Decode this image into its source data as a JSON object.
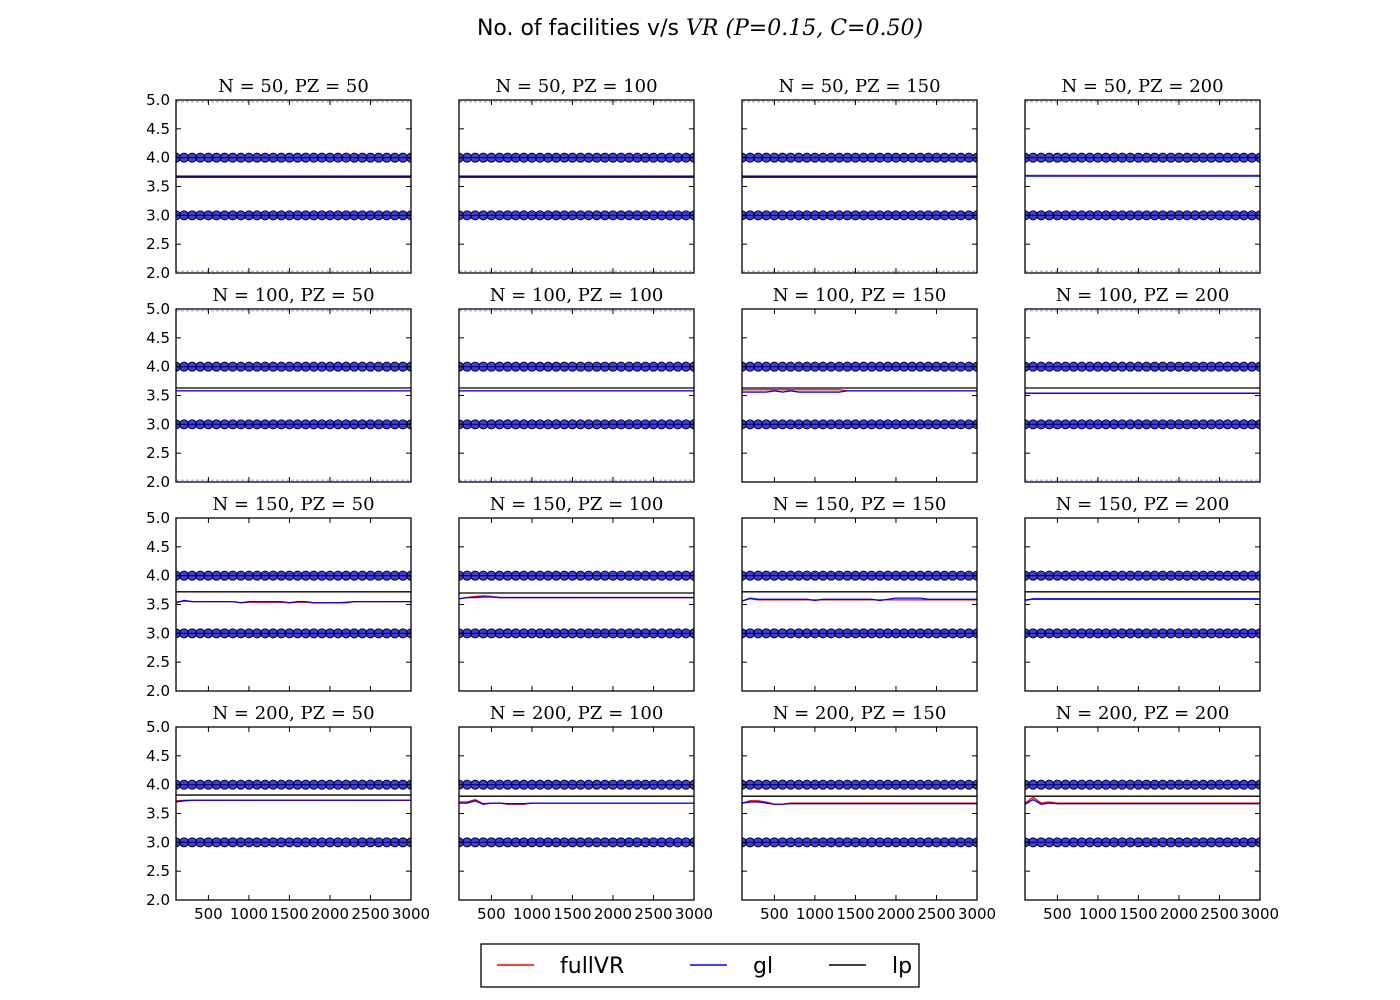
{
  "title": {
    "prefix": "No. of facilities v/s ",
    "var": "VR",
    "params": "(P=0.15, C=0.50)"
  },
  "colors": {
    "fullVR": "#ff0000",
    "gl": "#0000ff",
    "lp": "#000000",
    "points": "#0000cc"
  },
  "legend": {
    "placement": "bottom-center",
    "entries": [
      "fullVR",
      "gl",
      "lp"
    ]
  },
  "chart_data": {
    "type": "line",
    "layout": "4x4 grid of subplots",
    "shared_x_ticks": [
      500,
      1000,
      1500,
      2000,
      2500,
      3000
    ],
    "shared_y_ticks": [
      "2.0",
      "2.5",
      "3.0",
      "3.5",
      "4.0",
      "4.5",
      "5.0"
    ],
    "xlim": [
      100,
      3000
    ],
    "ylim": [
      2.0,
      5.0
    ],
    "x": [
      100,
      200,
      300,
      400,
      500,
      600,
      700,
      800,
      900,
      1000,
      1100,
      1200,
      1300,
      1400,
      1500,
      1600,
      1700,
      1800,
      1900,
      2000,
      2100,
      2200,
      2300,
      2400,
      2500,
      2600,
      2700,
      2800,
      2900,
      3000
    ],
    "scatter_levels": [
      3,
      4
    ],
    "panels": [
      {
        "N": 50,
        "PZ": 50,
        "label": "N = 50, PZ = 50",
        "lp": 3.68,
        "fullVR": 3.66,
        "gl": 3.66,
        "faint_bands": true
      },
      {
        "N": 50,
        "PZ": 100,
        "label": "N = 50, PZ = 100",
        "lp": 3.68,
        "fullVR": 3.66,
        "gl": 3.66,
        "faint_bands": true
      },
      {
        "N": 50,
        "PZ": 150,
        "label": "N = 50, PZ = 150",
        "lp": 3.68,
        "fullVR": 3.66,
        "gl": 3.66,
        "faint_bands": true
      },
      {
        "N": 50,
        "PZ": 200,
        "label": "N = 50, PZ = 200",
        "lp": 3.69,
        "fullVR": 3.69,
        "gl": 3.68,
        "faint_bands": true
      },
      {
        "N": 100,
        "PZ": 50,
        "label": "N = 100, PZ = 50",
        "lp": 3.63,
        "fullVR": 3.58,
        "gl": 3.58,
        "faint_bands": true
      },
      {
        "N": 100,
        "PZ": 100,
        "label": "N = 100, PZ = 100",
        "lp": 3.63,
        "fullVR": 3.58,
        "gl": 3.58,
        "faint_bands": true
      },
      {
        "N": 100,
        "PZ": 150,
        "label": "N = 100, PZ = 150",
        "lp": 3.63,
        "fullVR": [
          3.6,
          3.6,
          3.6,
          3.6,
          3.6,
          3.6,
          3.6,
          3.6,
          3.6,
          3.6,
          3.6,
          3.6,
          3.6,
          3.58,
          3.58,
          3.58,
          3.58,
          3.58,
          3.58,
          3.58,
          3.58,
          3.58,
          3.58,
          3.58,
          3.58,
          3.58,
          3.58,
          3.58,
          3.58,
          3.58
        ],
        "gl": [
          3.56,
          3.56,
          3.56,
          3.56,
          3.58,
          3.56,
          3.58,
          3.56,
          3.56,
          3.56,
          3.56,
          3.56,
          3.56,
          3.58,
          3.58,
          3.58,
          3.58,
          3.58,
          3.58,
          3.58,
          3.58,
          3.58,
          3.58,
          3.58,
          3.58,
          3.58,
          3.58,
          3.58,
          3.58,
          3.58
        ],
        "faint_bands": false
      },
      {
        "N": 100,
        "PZ": 200,
        "label": "N = 100, PZ = 200",
        "lp": 3.63,
        "fullVR": 3.54,
        "gl": 3.54,
        "faint_bands": true
      },
      {
        "N": 150,
        "PZ": 50,
        "label": "N = 150, PZ = 50",
        "lp": 3.72,
        "fullVR": [
          3.54,
          3.56,
          3.55,
          3.55,
          3.55,
          3.55,
          3.55,
          3.55,
          3.53,
          3.54,
          3.54,
          3.54,
          3.54,
          3.54,
          3.53,
          3.54,
          3.54,
          3.53,
          3.53,
          3.53,
          3.53,
          3.54,
          3.55,
          3.55,
          3.55,
          3.55,
          3.55,
          3.55,
          3.55,
          3.55
        ],
        "gl": [
          3.53,
          3.57,
          3.55,
          3.55,
          3.55,
          3.55,
          3.55,
          3.55,
          3.53,
          3.55,
          3.55,
          3.55,
          3.55,
          3.55,
          3.53,
          3.55,
          3.55,
          3.53,
          3.53,
          3.53,
          3.53,
          3.53,
          3.55,
          3.55,
          3.55,
          3.55,
          3.55,
          3.55,
          3.55,
          3.55
        ],
        "faint_bands": false
      },
      {
        "N": 150,
        "PZ": 100,
        "label": "N = 150, PZ = 100",
        "lp": 3.7,
        "fullVR": [
          3.6,
          3.62,
          3.64,
          3.65,
          3.64,
          3.62,
          3.62,
          3.62,
          3.62,
          3.62,
          3.62,
          3.62,
          3.62,
          3.62,
          3.62,
          3.62,
          3.62,
          3.62,
          3.62,
          3.62,
          3.62,
          3.62,
          3.62,
          3.62,
          3.62,
          3.62,
          3.62,
          3.62,
          3.62,
          3.62
        ],
        "gl": [
          3.6,
          3.62,
          3.62,
          3.63,
          3.63,
          3.62,
          3.62,
          3.62,
          3.62,
          3.62,
          3.62,
          3.62,
          3.62,
          3.62,
          3.62,
          3.62,
          3.62,
          3.62,
          3.62,
          3.62,
          3.62,
          3.62,
          3.62,
          3.62,
          3.62,
          3.62,
          3.62,
          3.62,
          3.62,
          3.62
        ],
        "faint_bands": false
      },
      {
        "N": 150,
        "PZ": 150,
        "label": "N = 150, PZ = 150",
        "lp": 3.72,
        "fullVR": [
          3.56,
          3.6,
          3.58,
          3.58,
          3.58,
          3.58,
          3.58,
          3.58,
          3.58,
          3.58,
          3.58,
          3.58,
          3.58,
          3.58,
          3.58,
          3.58,
          3.58,
          3.58,
          3.58,
          3.58,
          3.58,
          3.58,
          3.58,
          3.58,
          3.58,
          3.58,
          3.58,
          3.58,
          3.58,
          3.58
        ],
        "gl": [
          3.56,
          3.61,
          3.59,
          3.59,
          3.59,
          3.59,
          3.59,
          3.59,
          3.59,
          3.57,
          3.59,
          3.59,
          3.59,
          3.59,
          3.59,
          3.59,
          3.59,
          3.57,
          3.59,
          3.61,
          3.61,
          3.61,
          3.61,
          3.59,
          3.59,
          3.59,
          3.59,
          3.59,
          3.59,
          3.59
        ],
        "faint_bands": false
      },
      {
        "N": 150,
        "PZ": 200,
        "label": "N = 150, PZ = 200",
        "lp": 3.72,
        "fullVR": [
          3.58,
          3.59,
          3.59,
          3.59,
          3.59,
          3.59,
          3.59,
          3.59,
          3.59,
          3.59,
          3.59,
          3.59,
          3.59,
          3.59,
          3.59,
          3.59,
          3.59,
          3.59,
          3.59,
          3.59,
          3.59,
          3.59,
          3.59,
          3.59,
          3.59,
          3.59,
          3.59,
          3.59,
          3.59,
          3.59
        ],
        "gl": [
          3.57,
          3.6,
          3.6,
          3.6,
          3.6,
          3.6,
          3.6,
          3.6,
          3.6,
          3.6,
          3.6,
          3.6,
          3.6,
          3.6,
          3.6,
          3.6,
          3.6,
          3.6,
          3.6,
          3.6,
          3.6,
          3.6,
          3.6,
          3.6,
          3.6,
          3.6,
          3.6,
          3.6,
          3.6,
          3.6
        ],
        "faint_bands": false
      },
      {
        "N": 200,
        "PZ": 50,
        "label": "N = 200, PZ = 50",
        "lp": 3.82,
        "fullVR": [
          3.72,
          3.73,
          3.73,
          3.73,
          3.73,
          3.73,
          3.73,
          3.73,
          3.73,
          3.73,
          3.73,
          3.73,
          3.73,
          3.73,
          3.73,
          3.73,
          3.73,
          3.73,
          3.73,
          3.73,
          3.73,
          3.73,
          3.73,
          3.73,
          3.73,
          3.73,
          3.73,
          3.73,
          3.73,
          3.73
        ],
        "gl": [
          3.7,
          3.72,
          3.73,
          3.73,
          3.73,
          3.73,
          3.73,
          3.73,
          3.73,
          3.73,
          3.73,
          3.73,
          3.73,
          3.73,
          3.73,
          3.73,
          3.73,
          3.73,
          3.73,
          3.73,
          3.73,
          3.73,
          3.73,
          3.73,
          3.73,
          3.73,
          3.73,
          3.73,
          3.73,
          3.73
        ],
        "faint_bands": false
      },
      {
        "N": 200,
        "PZ": 100,
        "label": "N = 200, PZ = 100",
        "lp": 3.8,
        "fullVR": [
          3.7,
          3.7,
          3.74,
          3.67,
          3.68,
          3.68,
          3.66,
          3.66,
          3.66,
          3.68,
          3.68,
          3.68,
          3.68,
          3.68,
          3.68,
          3.68,
          3.68,
          3.68,
          3.68,
          3.68,
          3.68,
          3.68,
          3.68,
          3.68,
          3.68,
          3.68,
          3.68,
          3.68,
          3.68,
          3.68
        ],
        "gl": [
          3.68,
          3.68,
          3.72,
          3.66,
          3.68,
          3.68,
          3.67,
          3.67,
          3.67,
          3.68,
          3.68,
          3.68,
          3.68,
          3.68,
          3.68,
          3.68,
          3.68,
          3.68,
          3.68,
          3.68,
          3.68,
          3.68,
          3.68,
          3.68,
          3.68,
          3.68,
          3.68,
          3.68,
          3.68,
          3.68
        ],
        "faint_bands": false
      },
      {
        "N": 200,
        "PZ": 150,
        "label": "N = 200, PZ = 150",
        "lp": 3.8,
        "fullVR": [
          3.68,
          3.72,
          3.72,
          3.7,
          3.66,
          3.66,
          3.68,
          3.68,
          3.68,
          3.68,
          3.68,
          3.68,
          3.68,
          3.68,
          3.68,
          3.68,
          3.68,
          3.68,
          3.68,
          3.68,
          3.68,
          3.68,
          3.68,
          3.68,
          3.68,
          3.68,
          3.68,
          3.68,
          3.68,
          3.68
        ],
        "gl": [
          3.68,
          3.7,
          3.7,
          3.68,
          3.66,
          3.66,
          3.67,
          3.67,
          3.67,
          3.67,
          3.67,
          3.67,
          3.67,
          3.67,
          3.67,
          3.67,
          3.67,
          3.67,
          3.67,
          3.67,
          3.67,
          3.67,
          3.67,
          3.67,
          3.67,
          3.67,
          3.67,
          3.67,
          3.67,
          3.67
        ],
        "faint_bands": false
      },
      {
        "N": 200,
        "PZ": 200,
        "label": "N = 200, PZ = 200",
        "lp": 3.8,
        "fullVR": [
          3.68,
          3.78,
          3.68,
          3.7,
          3.68,
          3.68,
          3.68,
          3.68,
          3.68,
          3.68,
          3.68,
          3.68,
          3.68,
          3.68,
          3.68,
          3.68,
          3.68,
          3.68,
          3.68,
          3.68,
          3.68,
          3.68,
          3.68,
          3.68,
          3.68,
          3.68,
          3.68,
          3.68,
          3.68,
          3.68
        ],
        "gl": [
          3.66,
          3.74,
          3.66,
          3.68,
          3.67,
          3.67,
          3.67,
          3.67,
          3.67,
          3.67,
          3.67,
          3.67,
          3.67,
          3.67,
          3.67,
          3.67,
          3.67,
          3.67,
          3.67,
          3.67,
          3.67,
          3.67,
          3.67,
          3.67,
          3.67,
          3.67,
          3.67,
          3.67,
          3.67,
          3.67
        ],
        "faint_bands": false
      }
    ]
  }
}
